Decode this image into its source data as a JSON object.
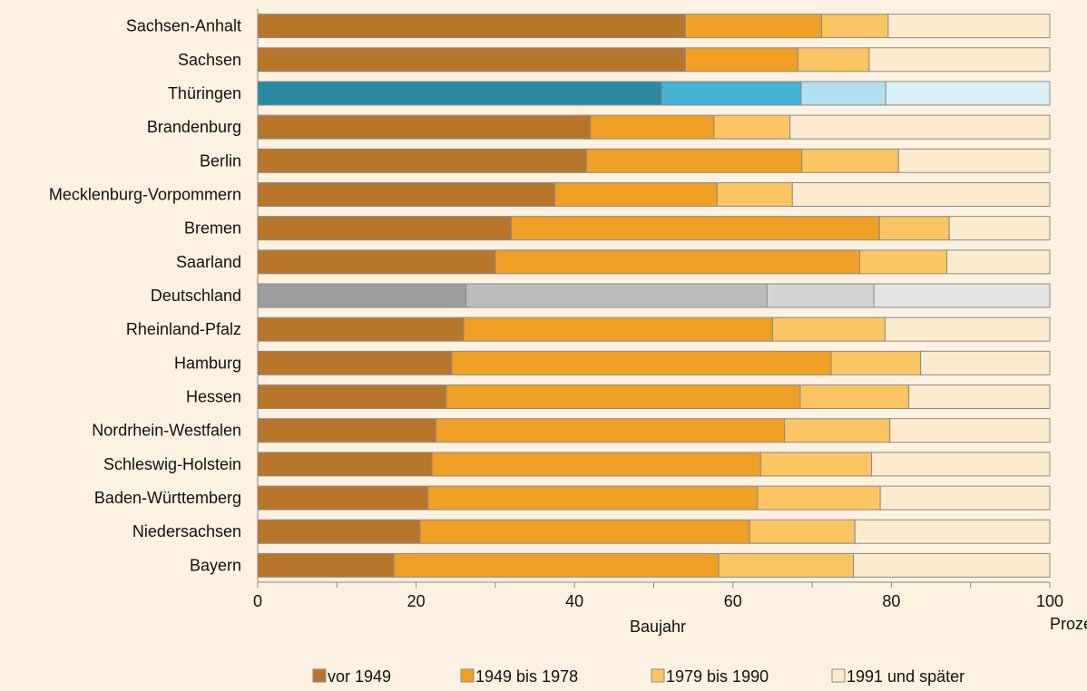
{
  "chart_data": {
    "type": "bar",
    "orientation": "horizontal",
    "stacked": true,
    "categories": [
      "Sachsen-Anhalt",
      "Sachsen",
      "Thüringen",
      "Brandenburg",
      "Berlin",
      "Mecklenburg-Vorpommern",
      "Bremen",
      "Saarland",
      "Deutschland",
      "Rheinland-Pfalz",
      "Hamburg",
      "Hessen",
      "Nordrhein-Westfalen",
      "Schleswig-Holstein",
      "Baden-Württemberg",
      "Niedersachsen",
      "Bayern"
    ],
    "series": [
      {
        "name": "vor 1949",
        "values": [
          54,
          54,
          51,
          42,
          41.5,
          37.5,
          32,
          30,
          26.3,
          26,
          24.5,
          23.8,
          22.5,
          22,
          21.5,
          20.5,
          17.2
        ]
      },
      {
        "name": "1949 bis 1978",
        "values": [
          17.2,
          14.2,
          17.6,
          15.6,
          27.2,
          20.5,
          46.5,
          46,
          38,
          39,
          47.9,
          44.7,
          44,
          41.5,
          41.6,
          41.6,
          41
        ]
      },
      {
        "name": "1979 bis 1990",
        "values": [
          8.4,
          9,
          10.7,
          9.6,
          12.2,
          9.5,
          8.8,
          11,
          13.5,
          14.2,
          11.3,
          13.7,
          13.3,
          14,
          15.5,
          13.3,
          17
        ]
      },
      {
        "name": "1991 und später",
        "values": [
          20.4,
          22.8,
          20.7,
          32.8,
          19.1,
          32.5,
          12.7,
          13,
          22.2,
          20.8,
          16.3,
          17.8,
          20.2,
          22.5,
          21.4,
          24.6,
          24.8
        ]
      }
    ],
    "highlighted_categories": {
      "Thüringen": [
        "#2b8aa2",
        "#45b3d3",
        "#b3dff0",
        "#daf0f8"
      ],
      "Deutschland": [
        "#9d9d9d",
        "#bcbcbc",
        "#d4d4d4",
        "#e4e4e4"
      ]
    },
    "colors": [
      "#b8762b",
      "#f0a025",
      "#fcc563",
      "#fdebcd"
    ],
    "x_ticks": [
      0,
      20,
      40,
      60,
      80,
      100
    ],
    "xlim": [
      0,
      100
    ],
    "xlabel": "Prozent",
    "legend_title": "Baujahr",
    "legend_position": "bottom",
    "grid": false
  }
}
